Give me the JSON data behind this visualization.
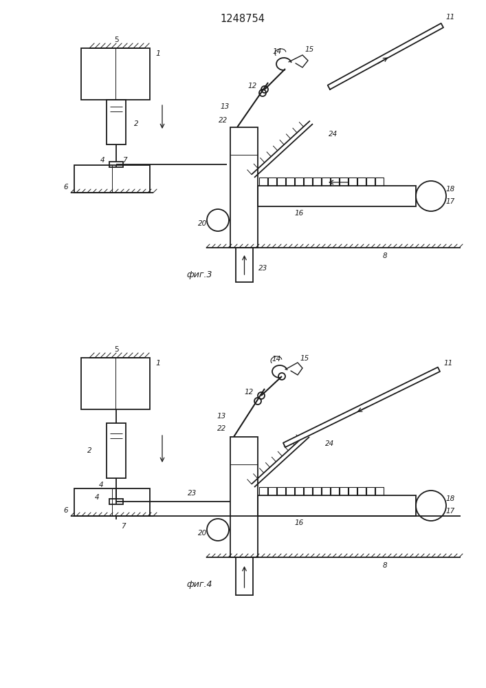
{
  "title": "1248754",
  "fig3_label": "фиг.3",
  "fig4_label": "фиг.4",
  "background_color": "#ffffff",
  "line_color": "#1a1a1a",
  "line_width": 1.3
}
